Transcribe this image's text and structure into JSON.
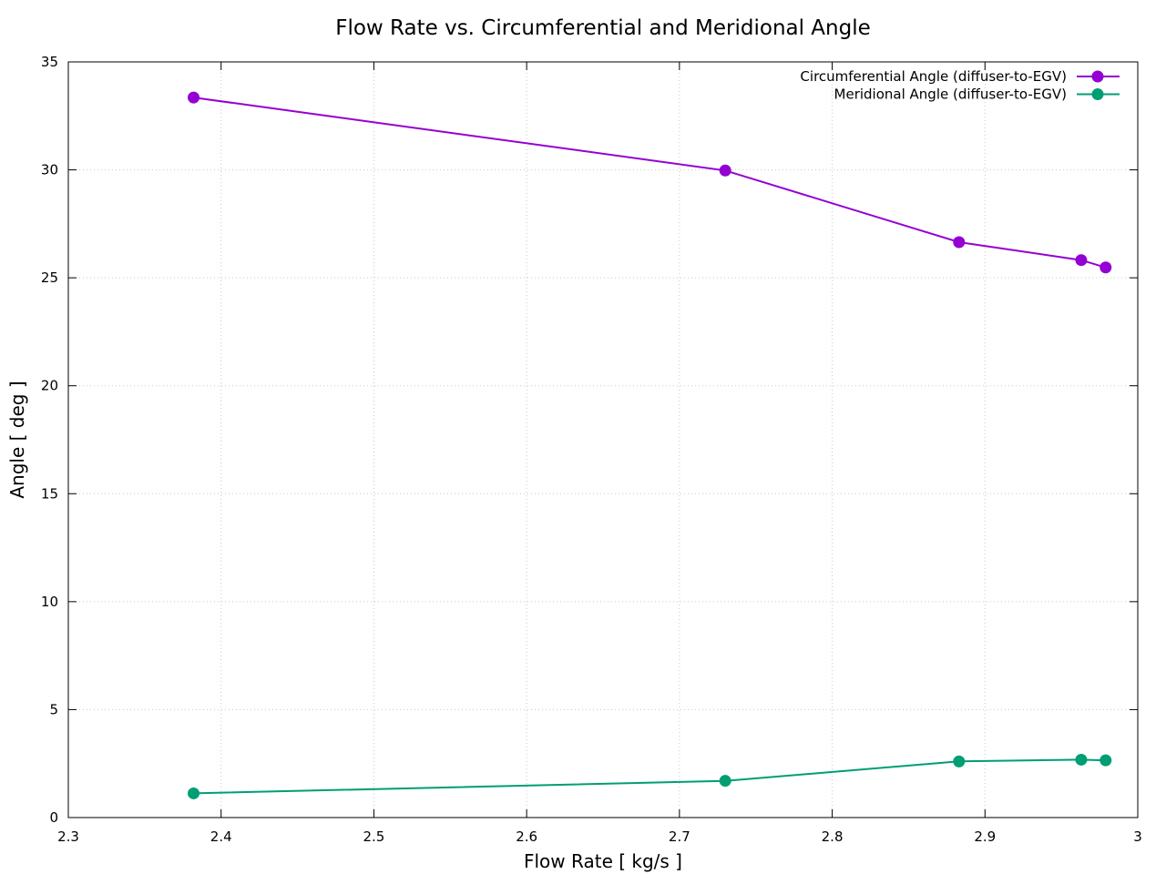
{
  "chart_data": {
    "type": "line",
    "title": "Flow Rate vs. Circumferential and Meridional Angle",
    "xlabel": "Flow Rate [ kg/s ]",
    "ylabel": "Angle [ deg ]",
    "xlim": [
      2.3,
      3.0
    ],
    "ylim": [
      0,
      35
    ],
    "xticks": [
      "2.3",
      "2.4",
      "2.5",
      "2.6",
      "2.7",
      "2.8",
      "2.9",
      "3"
    ],
    "yticks": [
      "0",
      "5",
      "10",
      "15",
      "20",
      "25",
      "30",
      "35"
    ],
    "grid": true,
    "legend_position": "top-right",
    "x": [
      2.382,
      2.73,
      2.883,
      2.963,
      2.979
    ],
    "series": [
      {
        "name": "Circumferential Angle (diffuser-to-EGV)",
        "color": "#9400d3",
        "values": [
          33.35,
          29.97,
          26.65,
          25.82,
          25.48
        ]
      },
      {
        "name": "Meridional Angle (diffuser-to-EGV)",
        "color": "#009e73",
        "values": [
          1.12,
          1.7,
          2.6,
          2.68,
          2.65
        ]
      }
    ]
  }
}
